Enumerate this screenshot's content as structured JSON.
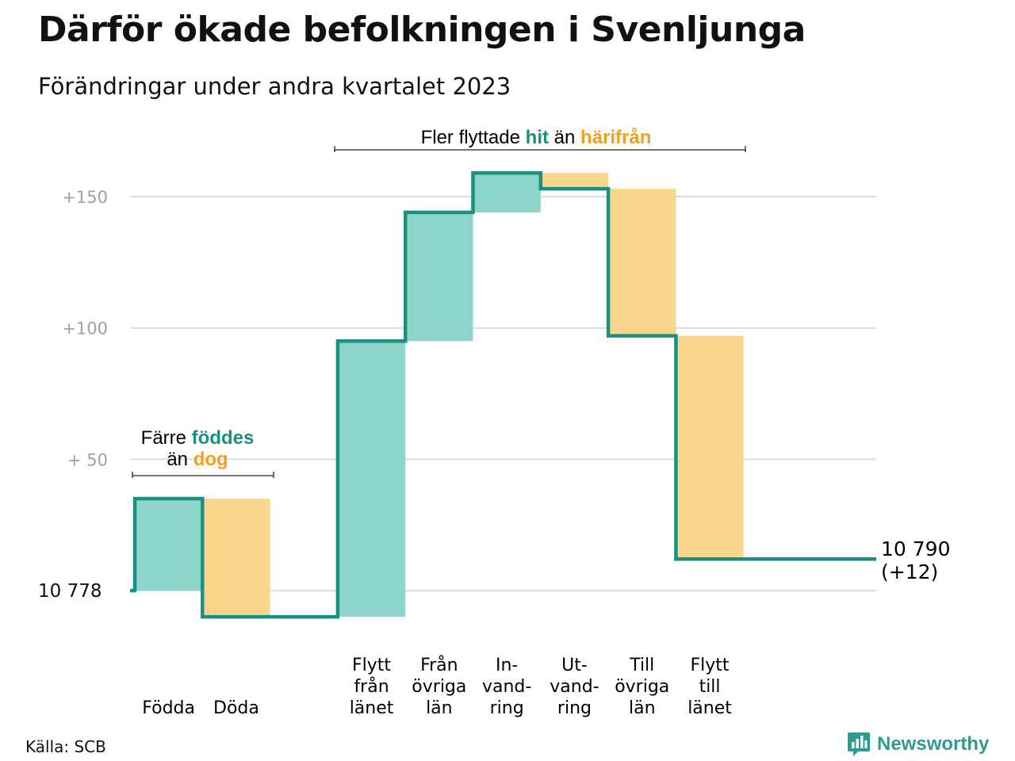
{
  "title": "Därför ökade befolkningen i Svenljunga",
  "subtitle": "Förändringar under andra kvartalet 2023",
  "source": "Källa: SCB",
  "brand": "Newsworthy",
  "colors": {
    "in_fill": "#8dd4cb",
    "out_fill": "#fad58c",
    "line": "#1a9080",
    "in_text": "#1a9080",
    "out_text": "#f0a020",
    "grid": "#dddddd",
    "tick": "#a0a0a0"
  },
  "annotations": {
    "birth": {
      "prefix": "Färre",
      "in_word": "föddes",
      "middle": "än",
      "out_word": "dog"
    },
    "move": {
      "prefix": "Fler flyttade",
      "in_word": "hit",
      "middle": "än",
      "out_word": "härifrån"
    }
  },
  "chart_data": {
    "type": "waterfall",
    "start_value_label": "10  778",
    "end_value_label": "10 790",
    "end_change_label": "(+12)",
    "yticks": [
      {
        "value": 150,
        "label": "+150"
      },
      {
        "value": 100,
        "label": "+100"
      },
      {
        "value": 50,
        "label": "+  50"
      },
      {
        "value": 0,
        "label": "10  778"
      }
    ],
    "ylim": [
      -12,
      160
    ],
    "steps": [
      {
        "label": [
          "Födda"
        ],
        "from": 0,
        "to": 35,
        "kind": "in"
      },
      {
        "label": [
          "Döda"
        ],
        "from": 35,
        "to": -10,
        "kind": "out"
      },
      {
        "label": [],
        "from": -10,
        "to": -10,
        "kind": "gap"
      },
      {
        "label": [
          "Flytt",
          "från",
          "länet"
        ],
        "from": -10,
        "to": 95,
        "kind": "in"
      },
      {
        "label": [
          "Från",
          "övriga",
          "län"
        ],
        "from": 95,
        "to": 144,
        "kind": "in"
      },
      {
        "label": [
          "In-",
          "vand-",
          "ring"
        ],
        "from": 144,
        "to": 159,
        "kind": "in"
      },
      {
        "label": [
          "Ut-",
          "vand-",
          "ring"
        ],
        "from": 159,
        "to": 153,
        "kind": "out"
      },
      {
        "label": [
          "Till",
          "övriga",
          "län"
        ],
        "from": 153,
        "to": 97,
        "kind": "out"
      },
      {
        "label": [
          "Flytt",
          "till",
          "länet"
        ],
        "from": 97,
        "to": 12,
        "kind": "out"
      },
      {
        "label": [],
        "from": 12,
        "to": 12,
        "kind": "end"
      }
    ]
  }
}
